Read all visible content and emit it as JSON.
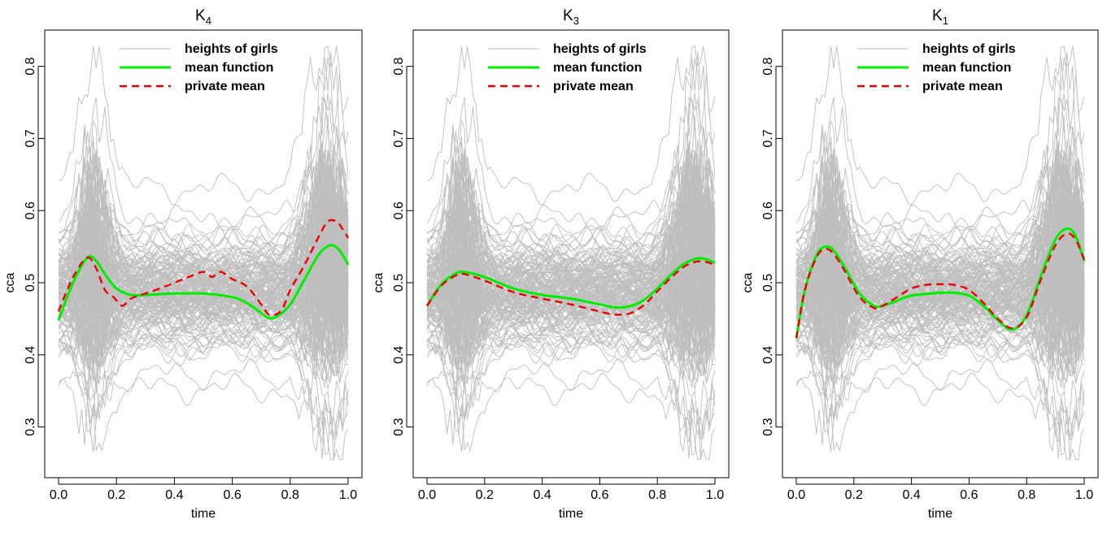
{
  "colors": {
    "background_curves": "#bebebe",
    "mean_function": "#00ee00",
    "private_mean": "#ee0000",
    "axis": "#000000"
  },
  "chart_data": [
    {
      "type": "line",
      "title": "K",
      "title_subscript": "4",
      "xlabel": "time",
      "ylabel": "cca",
      "xlim": [
        0.0,
        1.0
      ],
      "ylim": [
        0.25,
        0.83
      ],
      "xticks": [
        0.0,
        0.2,
        0.4,
        0.6,
        0.8,
        1.0
      ],
      "xtick_labels": [
        "0.0",
        "0.2",
        "0.4",
        "0.6",
        "0.8",
        "1.0"
      ],
      "yticks": [
        0.3,
        0.4,
        0.5,
        0.6,
        0.7,
        0.8
      ],
      "ytick_labels": [
        "0.3",
        "0.4",
        "0.5",
        "0.6",
        "0.7",
        "0.8"
      ],
      "legend": {
        "position": "top-right",
        "entries": [
          "heights of girls",
          "mean function",
          "private mean"
        ]
      },
      "series": [
        {
          "name": "mean function",
          "style": "solid",
          "x": [
            0.0,
            0.05,
            0.1,
            0.13,
            0.16,
            0.2,
            0.25,
            0.3,
            0.4,
            0.5,
            0.6,
            0.65,
            0.7,
            0.72,
            0.75,
            0.8,
            0.85,
            0.9,
            0.94,
            0.97,
            1.0
          ],
          "y": [
            0.448,
            0.5,
            0.535,
            0.53,
            0.512,
            0.492,
            0.483,
            0.483,
            0.485,
            0.485,
            0.48,
            0.472,
            0.458,
            0.452,
            0.452,
            0.47,
            0.505,
            0.54,
            0.552,
            0.545,
            0.525
          ]
        },
        {
          "name": "private mean",
          "style": "dashed",
          "x": [
            0.0,
            0.03,
            0.06,
            0.1,
            0.13,
            0.16,
            0.19,
            0.22,
            0.25,
            0.3,
            0.35,
            0.4,
            0.45,
            0.5,
            0.53,
            0.56,
            0.6,
            0.65,
            0.7,
            0.73,
            0.77,
            0.8,
            0.85,
            0.9,
            0.93,
            0.96,
            0.98,
            1.0
          ],
          "y": [
            0.46,
            0.49,
            0.515,
            0.535,
            0.52,
            0.49,
            0.48,
            0.468,
            0.478,
            0.485,
            0.492,
            0.5,
            0.508,
            0.515,
            0.508,
            0.515,
            0.505,
            0.495,
            0.47,
            0.455,
            0.462,
            0.49,
            0.525,
            0.565,
            0.585,
            0.585,
            0.575,
            0.562
          ]
        }
      ]
    },
    {
      "type": "line",
      "title": "K",
      "title_subscript": "3",
      "xlabel": "time",
      "ylabel": "cca",
      "xlim": [
        0.0,
        1.0
      ],
      "ylim": [
        0.25,
        0.83
      ],
      "xticks": [
        0.0,
        0.2,
        0.4,
        0.6,
        0.8,
        1.0
      ],
      "xtick_labels": [
        "0.0",
        "0.2",
        "0.4",
        "0.6",
        "0.8",
        "1.0"
      ],
      "yticks": [
        0.3,
        0.4,
        0.5,
        0.6,
        0.7,
        0.8
      ],
      "ytick_labels": [
        "0.3",
        "0.4",
        "0.5",
        "0.6",
        "0.7",
        "0.8"
      ],
      "legend": {
        "position": "top-right",
        "entries": [
          "heights of girls",
          "mean function",
          "private mean"
        ]
      },
      "series": [
        {
          "name": "mean function",
          "style": "solid",
          "x": [
            0.0,
            0.05,
            0.1,
            0.13,
            0.2,
            0.3,
            0.4,
            0.5,
            0.6,
            0.65,
            0.7,
            0.75,
            0.8,
            0.85,
            0.9,
            0.95,
            1.0
          ],
          "y": [
            0.468,
            0.498,
            0.513,
            0.515,
            0.508,
            0.492,
            0.483,
            0.478,
            0.47,
            0.466,
            0.467,
            0.475,
            0.492,
            0.512,
            0.528,
            0.534,
            0.528
          ]
        },
        {
          "name": "private mean",
          "style": "dashed",
          "x": [
            0.0,
            0.05,
            0.1,
            0.13,
            0.2,
            0.3,
            0.4,
            0.5,
            0.6,
            0.65,
            0.7,
            0.75,
            0.8,
            0.85,
            0.9,
            0.95,
            1.0
          ],
          "y": [
            0.468,
            0.496,
            0.51,
            0.512,
            0.503,
            0.487,
            0.478,
            0.47,
            0.46,
            0.456,
            0.457,
            0.468,
            0.488,
            0.508,
            0.524,
            0.53,
            0.525
          ]
        }
      ]
    },
    {
      "type": "line",
      "title": "K",
      "title_subscript": "1",
      "xlabel": "time",
      "ylabel": "cca",
      "xlim": [
        0.0,
        1.0
      ],
      "ylim": [
        0.25,
        0.83
      ],
      "xticks": [
        0.0,
        0.2,
        0.4,
        0.6,
        0.8,
        1.0
      ],
      "xtick_labels": [
        "0.0",
        "0.2",
        "0.4",
        "0.6",
        "0.8",
        "1.0"
      ],
      "yticks": [
        0.3,
        0.4,
        0.5,
        0.6,
        0.7,
        0.8
      ],
      "ytick_labels": [
        "0.3",
        "0.4",
        "0.5",
        "0.6",
        "0.7",
        "0.8"
      ],
      "legend": {
        "position": "top-right",
        "entries": [
          "heights of girls",
          "mean function",
          "private mean"
        ]
      },
      "series": [
        {
          "name": "mean function",
          "style": "solid",
          "x": [
            0.0,
            0.03,
            0.07,
            0.1,
            0.13,
            0.17,
            0.22,
            0.27,
            0.3,
            0.35,
            0.4,
            0.5,
            0.55,
            0.6,
            0.65,
            0.7,
            0.75,
            0.8,
            0.85,
            0.9,
            0.94,
            0.97,
            1.0
          ],
          "y": [
            0.423,
            0.49,
            0.538,
            0.55,
            0.545,
            0.52,
            0.485,
            0.468,
            0.468,
            0.475,
            0.482,
            0.486,
            0.486,
            0.482,
            0.468,
            0.448,
            0.435,
            0.455,
            0.51,
            0.56,
            0.575,
            0.565,
            0.53
          ]
        },
        {
          "name": "private mean",
          "style": "dashed",
          "x": [
            0.0,
            0.03,
            0.07,
            0.1,
            0.13,
            0.17,
            0.22,
            0.27,
            0.3,
            0.35,
            0.4,
            0.45,
            0.5,
            0.55,
            0.6,
            0.65,
            0.7,
            0.75,
            0.8,
            0.85,
            0.9,
            0.94,
            0.97,
            1.0
          ],
          "y": [
            0.423,
            0.49,
            0.535,
            0.547,
            0.54,
            0.515,
            0.48,
            0.465,
            0.468,
            0.48,
            0.492,
            0.497,
            0.498,
            0.497,
            0.49,
            0.472,
            0.45,
            0.437,
            0.452,
            0.505,
            0.552,
            0.568,
            0.56,
            0.532
          ]
        }
      ]
    }
  ]
}
